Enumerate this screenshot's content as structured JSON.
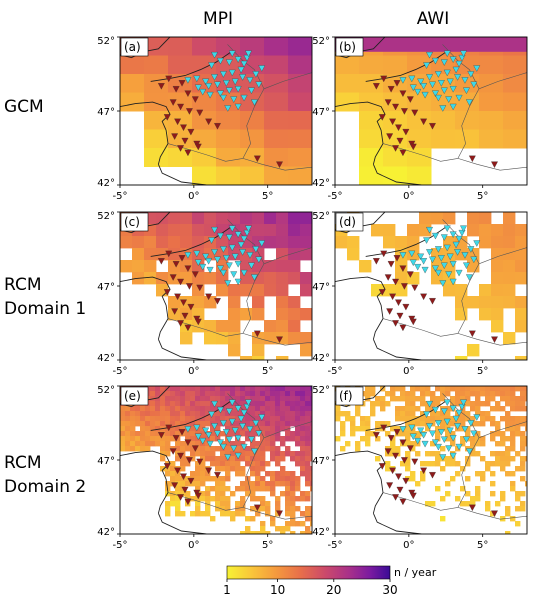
{
  "column_titles": [
    "MPI",
    "AWI"
  ],
  "row_titles": [
    {
      "line1": "GCM",
      "line2": ""
    },
    {
      "line1": "RCM",
      "line2": "Domain 1"
    },
    {
      "line1": "RCM",
      "line2": "Domain 2"
    }
  ],
  "panels": [
    {
      "label": "(a)",
      "model": "MPI",
      "row": "GCM"
    },
    {
      "label": "(b)",
      "model": "AWI",
      "row": "GCM"
    },
    {
      "label": "(c)",
      "model": "MPI",
      "row": "RCM Domain 1"
    },
    {
      "label": "(d)",
      "model": "AWI",
      "row": "RCM Domain 1"
    },
    {
      "label": "(e)",
      "model": "MPI",
      "row": "RCM Domain 2"
    },
    {
      "label": "(f)",
      "model": "AWI",
      "row": "RCM Domain 2"
    }
  ],
  "axes": {
    "x_ticks": [
      "-5°",
      "0°",
      "5°"
    ],
    "x_values": [
      -5,
      0,
      5
    ],
    "y_ticks": [
      "52°",
      "47°",
      "42°"
    ],
    "y_values": [
      52,
      47,
      42
    ],
    "lon_range": [
      -5,
      8
    ],
    "lat_range": [
      42,
      52
    ]
  },
  "colorbar": {
    "ticks": [
      "1",
      "10",
      "20",
      "30"
    ],
    "tick_values": [
      1,
      10,
      20,
      30
    ],
    "range": [
      1,
      30
    ],
    "unit": "n / year",
    "colors": [
      "#f7f234",
      "#f9c63a",
      "#f59a3e",
      "#e86f4a",
      "#cc4a6a",
      "#a8308a",
      "#7a1aa0",
      "#3a0c96"
    ]
  },
  "markers": {
    "cyan_color": "#3fd8e8",
    "red_color": "#8e1b1b",
    "cyan": [
      [
        1.2,
        50.1
      ],
      [
        1.8,
        50.4
      ],
      [
        2.4,
        50.3
      ],
      [
        3.0,
        50.5
      ],
      [
        3.4,
        50.2
      ],
      [
        3.6,
        50.6
      ],
      [
        3.2,
        49.8
      ],
      [
        2.6,
        49.6
      ],
      [
        2.0,
        49.5
      ],
      [
        1.4,
        49.3
      ],
      [
        0.8,
        49.0
      ],
      [
        0.2,
        49.2
      ],
      [
        -0.4,
        49.1
      ],
      [
        1.0,
        48.7
      ],
      [
        1.6,
        48.8
      ],
      [
        2.2,
        48.9
      ],
      [
        2.8,
        49.0
      ],
      [
        3.3,
        49.3
      ],
      [
        3.8,
        49.1
      ],
      [
        4.2,
        49.5
      ],
      [
        4.4,
        48.8
      ],
      [
        3.9,
        48.4
      ],
      [
        3.0,
        48.5
      ],
      [
        2.4,
        48.4
      ],
      [
        1.8,
        48.2
      ],
      [
        1.1,
        48.1
      ],
      [
        0.6,
        48.3
      ],
      [
        2.0,
        47.9
      ],
      [
        2.7,
        47.8
      ],
      [
        3.4,
        47.9
      ],
      [
        4.1,
        47.6
      ],
      [
        3.0,
        47.3
      ],
      [
        2.3,
        47.2
      ],
      [
        1.4,
        50.8
      ],
      [
        2.6,
        50.9
      ],
      [
        3.7,
        50.9
      ],
      [
        0.3,
        48.6
      ],
      [
        4.6,
        49.9
      ]
    ],
    "red": [
      [
        -2.2,
        48.7
      ],
      [
        -1.7,
        49.2
      ],
      [
        -1.2,
        48.5
      ],
      [
        -0.8,
        48.9
      ],
      [
        -0.4,
        48.2
      ],
      [
        0.1,
        47.8
      ],
      [
        -1.4,
        47.6
      ],
      [
        -0.9,
        47.3
      ],
      [
        -0.3,
        47.0
      ],
      [
        0.4,
        46.9
      ],
      [
        -1.8,
        46.6
      ],
      [
        -1.1,
        46.3
      ],
      [
        -0.7,
        45.9
      ],
      [
        -0.2,
        45.6
      ],
      [
        -1.3,
        45.3
      ],
      [
        -0.6,
        45.0
      ],
      [
        0.2,
        44.8
      ],
      [
        -0.9,
        44.5
      ],
      [
        -0.4,
        44.2
      ],
      [
        0.3,
        44.6
      ],
      [
        4.3,
        43.8
      ],
      [
        5.8,
        43.4
      ],
      [
        1.0,
        46.3
      ],
      [
        1.6,
        46.0
      ]
    ]
  }
}
